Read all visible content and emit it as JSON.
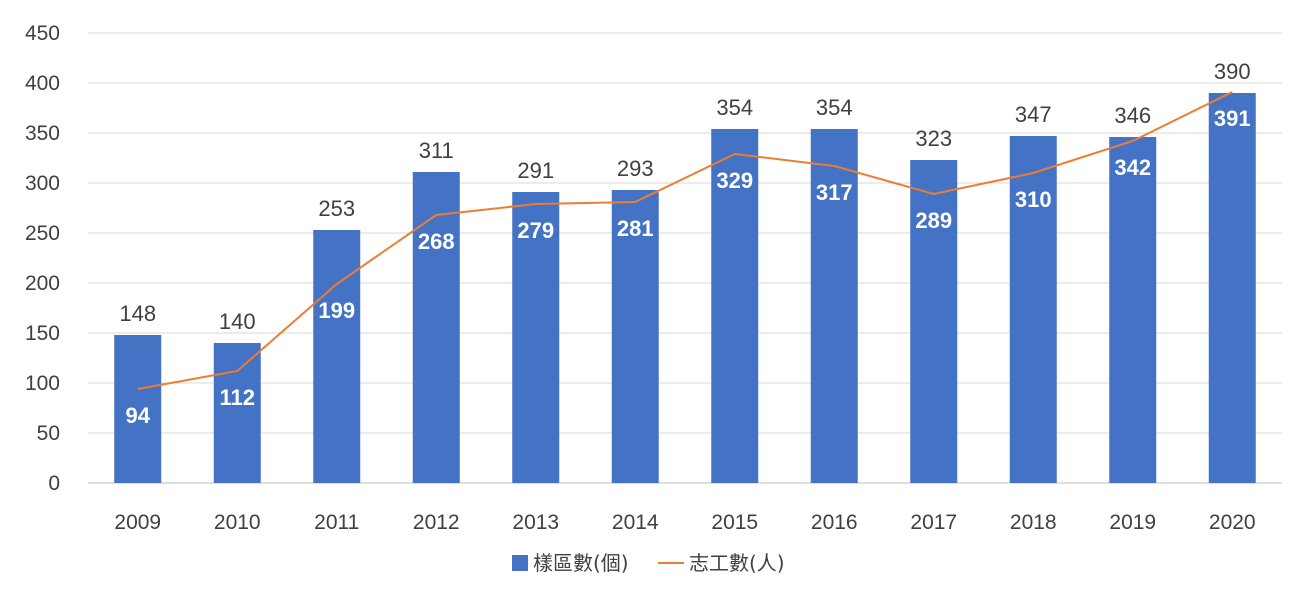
{
  "chart_data": {
    "type": "bar",
    "categories": [
      "2009",
      "2010",
      "2011",
      "2012",
      "2013",
      "2014",
      "2015",
      "2016",
      "2017",
      "2018",
      "2019",
      "2020"
    ],
    "series": [
      {
        "name": "樣區數(個)",
        "type": "bar",
        "color": "#4472C4",
        "values": [
          148,
          140,
          253,
          311,
          291,
          293,
          354,
          354,
          323,
          347,
          346,
          390
        ]
      },
      {
        "name": "志工數(人)",
        "type": "line",
        "color": "#ED7D31",
        "values": [
          94,
          112,
          199,
          268,
          279,
          281,
          329,
          317,
          289,
          310,
          342,
          391
        ]
      }
    ],
    "ylim": [
      0,
      450
    ],
    "yticks": [
      0,
      50,
      100,
      150,
      200,
      250,
      300,
      350,
      400,
      450
    ],
    "grid": true,
    "legend": "bottom"
  }
}
